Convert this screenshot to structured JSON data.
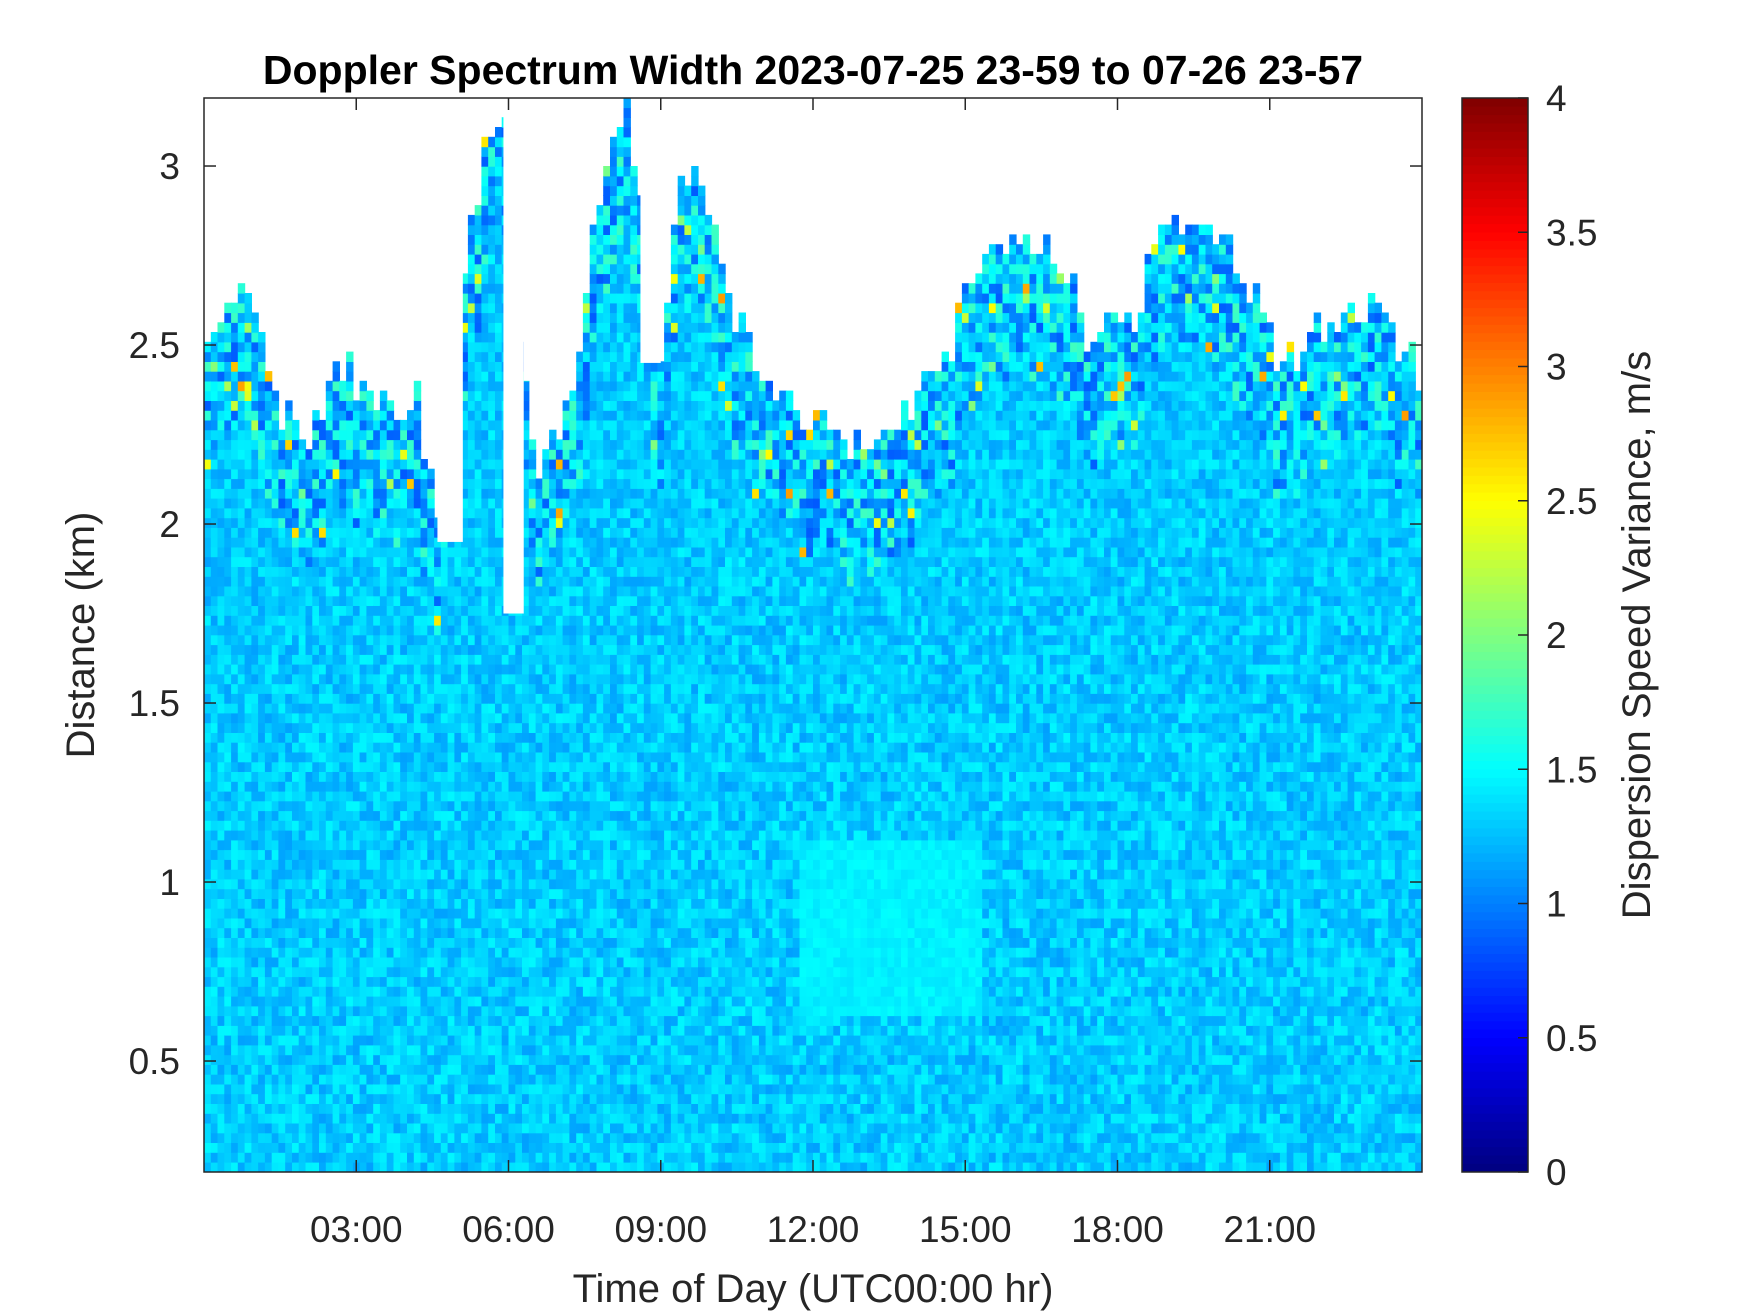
{
  "chart_data": {
    "type": "heatmap",
    "title": "Doppler Spectrum Width 2023-07-25 23-59 to 07-26 23-57",
    "xlabel": "Time of Day (UTC00:00 hr)",
    "ylabel": "Distance (km)",
    "x_ticks": [
      "03:00",
      "06:00",
      "09:00",
      "12:00",
      "15:00",
      "18:00",
      "21:00"
    ],
    "x_tick_hours": [
      3,
      6,
      9,
      12,
      15,
      18,
      21
    ],
    "xlim_hours": [
      0,
      24
    ],
    "y_ticks": [
      "0.5",
      "1",
      "1.5",
      "2",
      "2.5",
      "3"
    ],
    "y_tick_values": [
      0.5,
      1,
      1.5,
      2,
      2.5,
      3
    ],
    "ylim_km": [
      0.19,
      3.19
    ],
    "colorbar": {
      "label": "Dispersion Speed Variance, m/s",
      "ticks": [
        "0",
        "0.5",
        "1",
        "1.5",
        "2",
        "2.5",
        "3",
        "3.5",
        "4"
      ],
      "tick_values": [
        0,
        0.5,
        1,
        1.5,
        2,
        2.5,
        3,
        3.5,
        4
      ],
      "range": [
        0,
        4
      ],
      "colormap": "jet"
    },
    "value_mean": 1.3,
    "data_top_km": [
      {
        "h": 0.0,
        "km": 2.45
      },
      {
        "h": 0.5,
        "km": 2.62
      },
      {
        "h": 1.0,
        "km": 2.6
      },
      {
        "h": 1.3,
        "km": 2.35
      },
      {
        "h": 2.0,
        "km": 2.2
      },
      {
        "h": 2.8,
        "km": 2.45
      },
      {
        "h": 3.3,
        "km": 2.3
      },
      {
        "h": 4.2,
        "km": 2.35
      },
      {
        "h": 4.6,
        "km": 2.0
      },
      {
        "h": 5.0,
        "km": 2.55
      },
      {
        "h": 5.5,
        "km": 3.0
      },
      {
        "h": 6.0,
        "km": 3.19
      },
      {
        "h": 6.5,
        "km": 2.1
      },
      {
        "h": 7.3,
        "km": 2.4
      },
      {
        "h": 7.8,
        "km": 2.9
      },
      {
        "h": 8.3,
        "km": 3.19
      },
      {
        "h": 8.7,
        "km": 2.8
      },
      {
        "h": 9.0,
        "km": 2.4
      },
      {
        "h": 9.4,
        "km": 3.0
      },
      {
        "h": 9.9,
        "km": 2.9
      },
      {
        "h": 10.4,
        "km": 2.6
      },
      {
        "h": 11.0,
        "km": 2.35
      },
      {
        "h": 11.8,
        "km": 2.3
      },
      {
        "h": 12.5,
        "km": 2.2
      },
      {
        "h": 13.5,
        "km": 2.25
      },
      {
        "h": 14.5,
        "km": 2.4
      },
      {
        "h": 15.2,
        "km": 2.7
      },
      {
        "h": 16.0,
        "km": 2.8
      },
      {
        "h": 16.8,
        "km": 2.75
      },
      {
        "h": 17.5,
        "km": 2.5
      },
      {
        "h": 18.3,
        "km": 2.55
      },
      {
        "h": 18.8,
        "km": 2.8
      },
      {
        "h": 19.5,
        "km": 2.85
      },
      {
        "h": 20.5,
        "km": 2.7
      },
      {
        "h": 21.2,
        "km": 2.4
      },
      {
        "h": 22.0,
        "km": 2.55
      },
      {
        "h": 23.0,
        "km": 2.6
      },
      {
        "h": 24.0,
        "km": 2.4
      }
    ],
    "data_gaps": [
      {
        "h0": 4.6,
        "h1": 5.1,
        "km0": 1.95,
        "km1": 3.19
      },
      {
        "h0": 5.9,
        "h1": 6.3,
        "km0": 1.75,
        "km1": 3.19
      },
      {
        "h0": 6.3,
        "h1": 7.3,
        "km0": 2.4,
        "km1": 3.19
      },
      {
        "h0": 8.6,
        "h1": 9.0,
        "km0": 2.45,
        "km1": 3.19
      }
    ],
    "notable_features": [
      {
        "h0": 11.7,
        "h1": 15.2,
        "km0": 0.6,
        "km1": 1.1,
        "value": 1.45
      }
    ]
  }
}
